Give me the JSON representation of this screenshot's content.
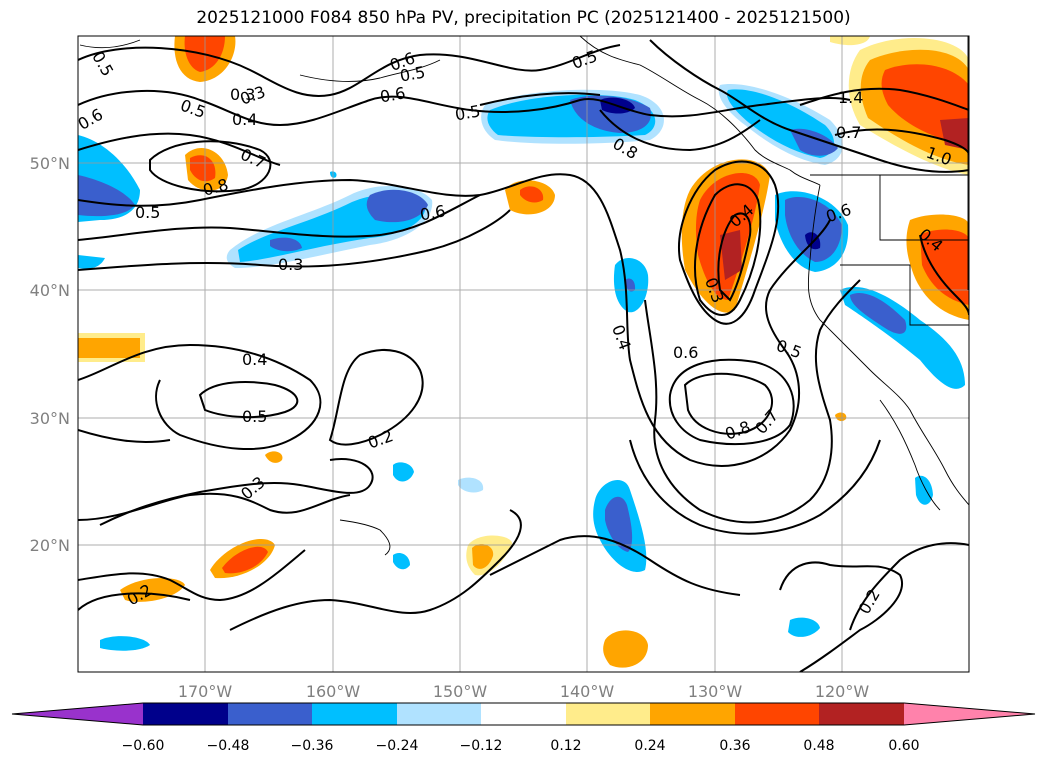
{
  "title": "2025121000 F084 850 hPa PV, precipitation PC (2025121400 - 2025121500)",
  "map": {
    "lon_labels": [
      "170°W",
      "160°W",
      "150°W",
      "140°W",
      "130°W",
      "120°W"
    ],
    "lat_labels": [
      "50°N",
      "40°N",
      "30°N",
      "20°N"
    ],
    "contour_labels": [
      "0.5",
      "0.3",
      "0.4",
      "0.5",
      "0.6",
      "0.7",
      "0.8",
      "0.5",
      "0.6",
      "0.5",
      "0.8",
      "0.3",
      "0.4",
      "0.6",
      "0.6",
      "0.5",
      "0.4",
      "0.4",
      "0.5",
      "0.3",
      "0.2",
      "0.3",
      "0.2",
      "0.6",
      "0.5",
      "0.3",
      "0.8",
      "0.7",
      "0.2",
      "1.4",
      "0.7",
      "1.0",
      "0.4",
      "0.6",
      "0.5"
    ]
  },
  "colorbar": {
    "labels": [
      "−0.60",
      "−0.48",
      "−0.36",
      "−0.24",
      "−0.12",
      "0.12",
      "0.24",
      "0.36",
      "0.48",
      "0.60"
    ],
    "colors": [
      "#9932cc",
      "#00008b",
      "#3a5fcd",
      "#00bfff",
      "#b0e2ff",
      "#ffffff",
      "#ffec8b",
      "#ffa500",
      "#ff4500",
      "#b22222",
      "#ff82ab"
    ]
  }
}
